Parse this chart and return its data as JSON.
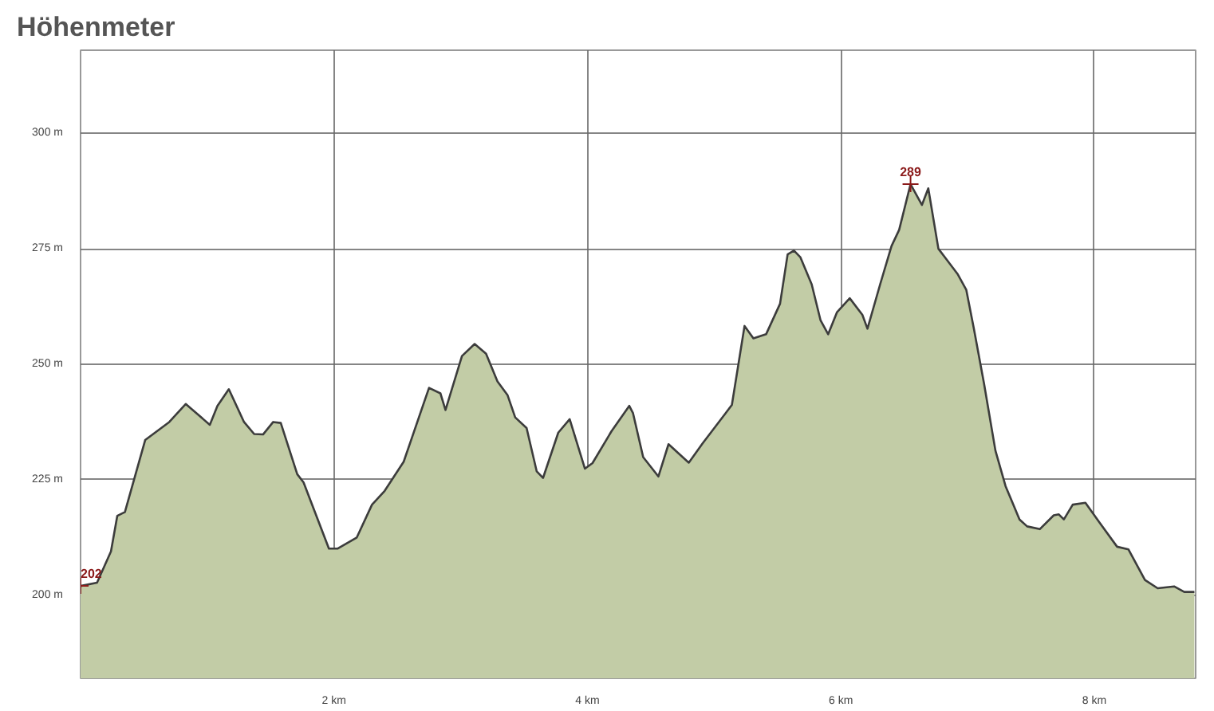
{
  "chart_data": {
    "type": "area",
    "title": "Höhenmeter",
    "x": [
      0.0,
      0.13,
      0.24,
      0.29,
      0.35,
      0.51,
      0.7,
      0.83,
      1.02,
      1.08,
      1.17,
      1.29,
      1.37,
      1.44,
      1.52,
      1.58,
      1.71,
      1.76,
      1.96,
      2.03,
      2.18,
      2.3,
      2.4,
      2.55,
      2.75,
      2.84,
      2.88,
      3.01,
      3.11,
      3.2,
      3.29,
      3.37,
      3.43,
      3.52,
      3.6,
      3.65,
      3.77,
      3.86,
      3.98,
      4.04,
      4.19,
      4.33,
      4.36,
      4.44,
      4.56,
      4.64,
      4.8,
      4.91,
      5.09,
      5.14,
      5.24,
      5.31,
      5.41,
      5.52,
      5.58,
      5.63,
      5.68,
      5.77,
      5.84,
      5.9,
      5.97,
      6.07,
      6.17,
      6.21,
      6.31,
      6.4,
      6.46,
      6.55,
      6.64,
      6.69,
      6.77,
      6.82,
      6.92,
      6.99,
      7.05,
      7.13,
      7.22,
      7.3,
      7.41,
      7.47,
      7.57,
      7.68,
      7.72,
      7.76,
      7.83,
      7.93,
      8.04,
      8.18,
      8.27,
      8.4,
      8.5,
      8.63,
      8.71,
      8.79
    ],
    "series": [
      {
        "color": "#c2cca6",
        "values": [
          202,
          202.7,
          209.5,
          217.2,
          218,
          233.6,
          237.5,
          241.4,
          236.9,
          241,
          244.6,
          237.5,
          234.9,
          234.8,
          237.5,
          237.3,
          226.2,
          224.4,
          210.1,
          210.1,
          212.5,
          219.6,
          222.6,
          228.9,
          244.9,
          243.7,
          240.1,
          251.8,
          254.4,
          252.3,
          246.3,
          243.3,
          238.5,
          236.2,
          226.8,
          225.4,
          235.2,
          238.1,
          227.4,
          228.6,
          235.5,
          241,
          239.4,
          229.9,
          225.7,
          232.7,
          228.7,
          232.9,
          239.4,
          241.2,
          258.3,
          255.6,
          256.5,
          263.1,
          273.8,
          274.6,
          273.2,
          267.3,
          259.5,
          256.5,
          261.3,
          264.3,
          260.7,
          257.7,
          267.3,
          275.6,
          279.1,
          289,
          284.5,
          288.1,
          275,
          273.2,
          269.6,
          266.1,
          257.7,
          245.8,
          231.3,
          223.6,
          216.4,
          214.9,
          214.3,
          217.3,
          217.5,
          216.4,
          219.6,
          220,
          215.8,
          210.5,
          209.9,
          203.3,
          201.5,
          201.9,
          200.7,
          200.7
        ]
      }
    ],
    "xlim": [
      0,
      8.8
    ],
    "ylim": [
      182,
      318
    ],
    "xticks": [
      {
        "value": 2,
        "label": "2 km"
      },
      {
        "value": 4,
        "label": "4 km"
      },
      {
        "value": 6,
        "label": "6 km"
      },
      {
        "value": 8,
        "label": "8 km"
      }
    ],
    "yticks": [
      {
        "value": 200,
        "label": "200 m"
      },
      {
        "value": 225,
        "label": "225 m"
      },
      {
        "value": 250,
        "label": "250 m"
      },
      {
        "value": 275,
        "label": "275 m"
      },
      {
        "value": 300,
        "label": "300 m"
      }
    ],
    "grid": true,
    "marker": "none",
    "annotations": [
      {
        "text": "202",
        "x": 0,
        "y": 202
      },
      {
        "text": "289",
        "x": 6.55,
        "y": 289
      }
    ]
  }
}
